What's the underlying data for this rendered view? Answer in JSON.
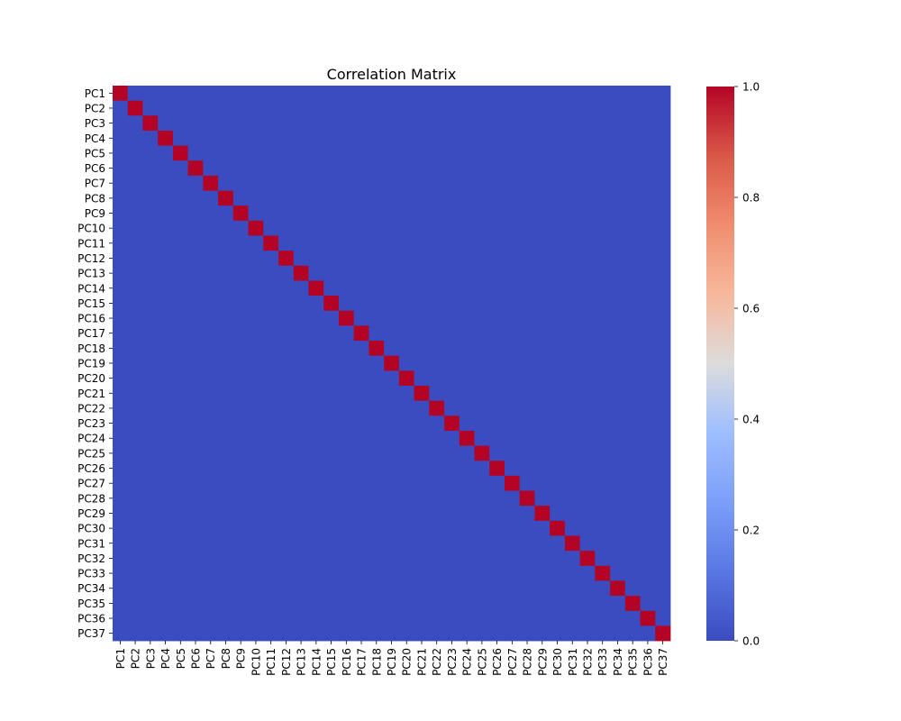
{
  "chart_data": {
    "type": "heatmap",
    "title": "Correlation Matrix",
    "xlabel": "",
    "ylabel": "",
    "row_labels": [
      "PC1",
      "PC2",
      "PC3",
      "PC4",
      "PC5",
      "PC6",
      "PC7",
      "PC8",
      "PC9",
      "PC10",
      "PC11",
      "PC12",
      "PC13",
      "PC14",
      "PC15",
      "PC16",
      "PC17",
      "PC18",
      "PC19",
      "PC20",
      "PC21",
      "PC22",
      "PC23",
      "PC24",
      "PC25",
      "PC26",
      "PC27",
      "PC28",
      "PC29",
      "PC30",
      "PC31",
      "PC32",
      "PC33",
      "PC34",
      "PC35",
      "PC36",
      "PC37"
    ],
    "col_labels": [
      "PC1",
      "PC2",
      "PC3",
      "PC4",
      "PC5",
      "PC6",
      "PC7",
      "PC8",
      "PC9",
      "PC10",
      "PC11",
      "PC12",
      "PC13",
      "PC14",
      "PC15",
      "PC16",
      "PC17",
      "PC18",
      "PC19",
      "PC20",
      "PC21",
      "PC22",
      "PC23",
      "PC24",
      "PC25",
      "PC26",
      "PC27",
      "PC28",
      "PC29",
      "PC30",
      "PC31",
      "PC32",
      "PC33",
      "PC34",
      "PC35",
      "PC36",
      "PC37"
    ],
    "values": "37x37 identity matrix: 1.0 on the diagonal, 0.0 everywhere else",
    "vmin": 0.0,
    "vmax": 1.0,
    "colormap": "coolwarm",
    "colorbar_ticks": [
      "0.0",
      "0.2",
      "0.4",
      "0.6",
      "0.8",
      "1.0"
    ],
    "colors": {
      "low": "#3b4cc0",
      "high": "#b40426"
    }
  }
}
